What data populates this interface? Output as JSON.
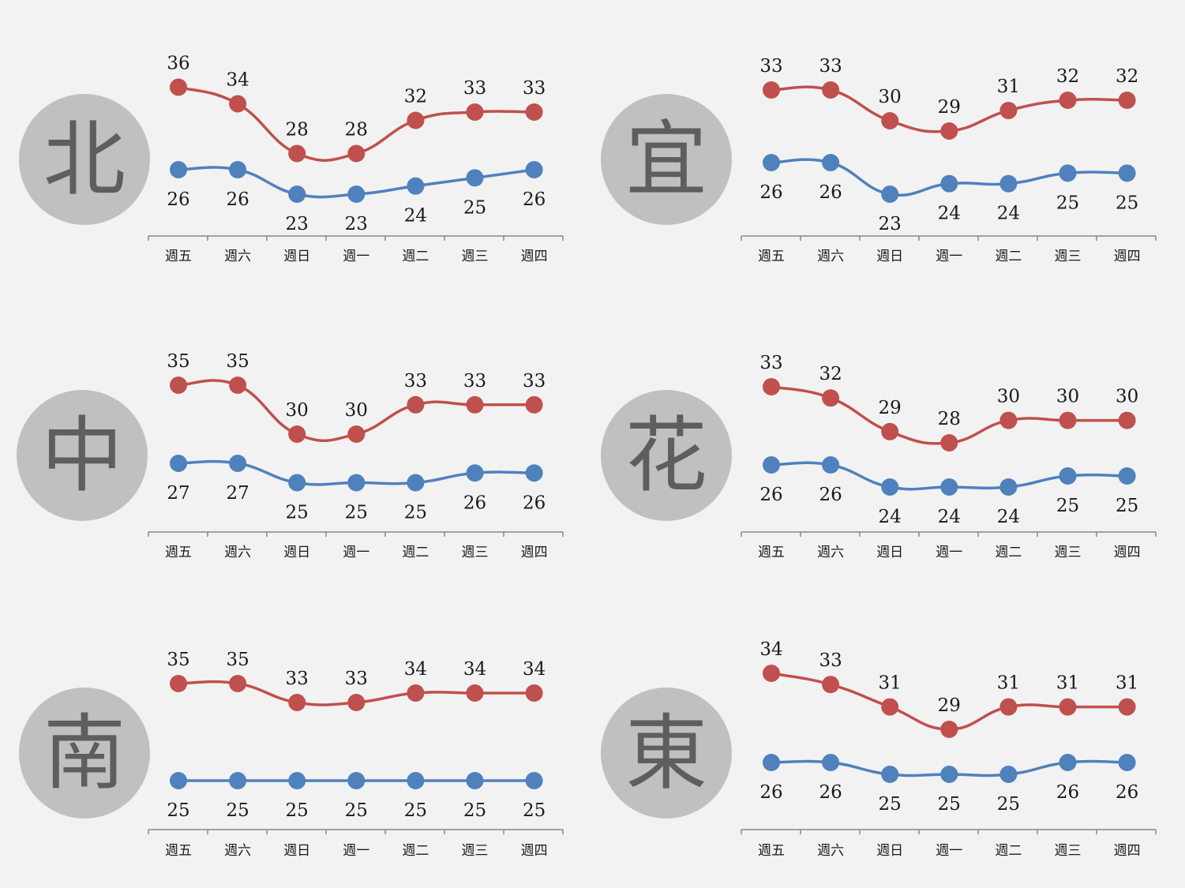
{
  "colors": {
    "high": "#c0504d",
    "low": "#4f81bd",
    "axis": "#888888",
    "badge": "#c0c0c0",
    "badge_text": "#5e5e5e"
  },
  "chart_data": [
    {
      "type": "line",
      "region": "北",
      "categories": [
        "週五",
        "週六",
        "週日",
        "週一",
        "週二",
        "週三",
        "週四"
      ],
      "series": [
        {
          "values": [
            36,
            34,
            28,
            28,
            32,
            33,
            33
          ]
        },
        {
          "values": [
            26,
            26,
            23,
            23,
            24,
            25,
            26
          ]
        }
      ]
    },
    {
      "type": "line",
      "region": "宜",
      "categories": [
        "週五",
        "週六",
        "週日",
        "週一",
        "週二",
        "週三",
        "週四"
      ],
      "series": [
        {
          "values": [
            33,
            33,
            30,
            29,
            31,
            32,
            32
          ]
        },
        {
          "values": [
            26,
            26,
            23,
            24,
            24,
            25,
            25
          ]
        }
      ]
    },
    {
      "type": "line",
      "region": "中",
      "categories": [
        "週五",
        "週六",
        "週日",
        "週一",
        "週二",
        "週三",
        "週四"
      ],
      "series": [
        {
          "values": [
            35,
            35,
            30,
            30,
            33,
            33,
            33
          ]
        },
        {
          "values": [
            27,
            27,
            25,
            25,
            25,
            26,
            26
          ]
        }
      ]
    },
    {
      "type": "line",
      "region": "花",
      "categories": [
        "週五",
        "週六",
        "週日",
        "週一",
        "週二",
        "週三",
        "週四"
      ],
      "series": [
        {
          "values": [
            33,
            32,
            29,
            28,
            30,
            30,
            30
          ]
        },
        {
          "values": [
            26,
            26,
            24,
            24,
            24,
            25,
            25
          ]
        }
      ]
    },
    {
      "type": "line",
      "region": "南",
      "categories": [
        "週五",
        "週六",
        "週日",
        "週一",
        "週二",
        "週三",
        "週四"
      ],
      "series": [
        {
          "values": [
            35,
            35,
            33,
            33,
            34,
            34,
            34
          ]
        },
        {
          "values": [
            25,
            25,
            25,
            25,
            25,
            25,
            25
          ]
        }
      ]
    },
    {
      "type": "line",
      "region": "東",
      "categories": [
        "週五",
        "週六",
        "週日",
        "週一",
        "週二",
        "週三",
        "週四"
      ],
      "series": [
        {
          "values": [
            34,
            33,
            31,
            29,
            31,
            31,
            31
          ]
        },
        {
          "values": [
            26,
            26,
            25,
            25,
            25,
            26,
            26
          ]
        }
      ]
    }
  ]
}
